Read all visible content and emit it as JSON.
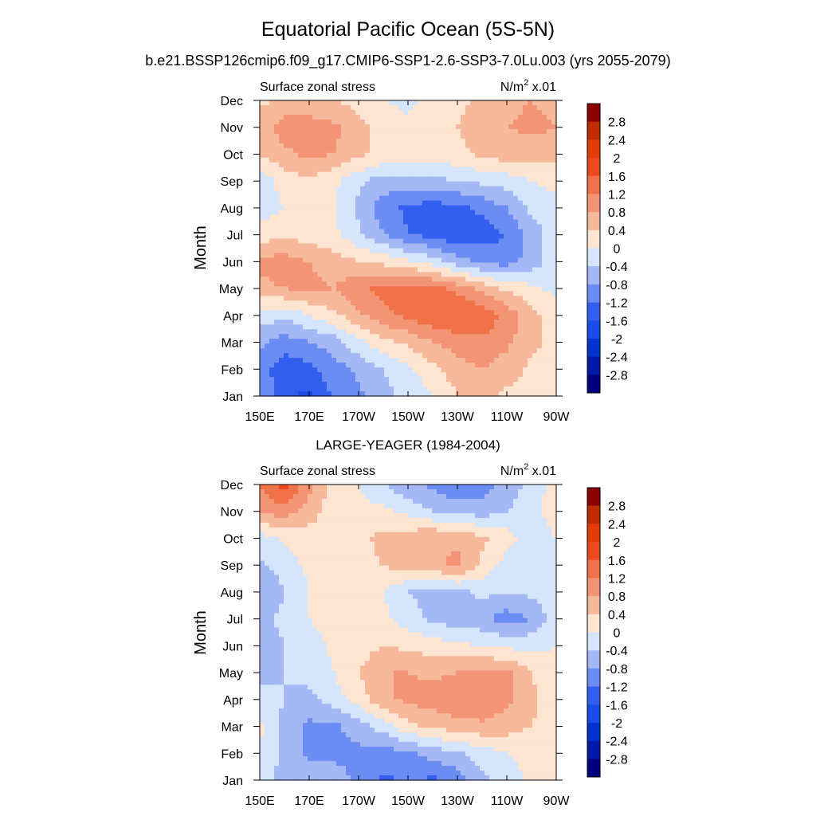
{
  "figure": {
    "title": "Equatorial Pacific Ocean (5S-5N)",
    "subtitle": "b.e21.BSSP126cmip6.f09_g17.CMIP6-SSP1-2.6-SSP3-7.0Lu.003 (yrs 2055-2079)",
    "panel2_title": "LARGE-YEAGER (1984-2004)"
  },
  "colors": {
    "palette": [
      "#00007f",
      "#0019a6",
      "#0033cc",
      "#1a4de6",
      "#335ff0",
      "#6b8cf2",
      "#a3b8f5",
      "#d5e5fb",
      "#fde5d2",
      "#f7b99b",
      "#f39575",
      "#f07048",
      "#eb4a1f",
      "#e43c08",
      "#bf2c00",
      "#8c0000"
    ]
  },
  "chart_data": [
    {
      "type": "heatmap",
      "left_label": "Surface zonal stress",
      "right_label": "N/m",
      "right_label_sup": "2",
      "right_label_tail": " x.01",
      "ylabel": "Month",
      "x_ticks": [
        "150E",
        "170E",
        "170W",
        "150W",
        "130W",
        "110W",
        "90W"
      ],
      "y_ticks": [
        "Jan",
        "Feb",
        "Mar",
        "Apr",
        "May",
        "Jun",
        "Jul",
        "Aug",
        "Sep",
        "Oct",
        "Nov",
        "Dec"
      ],
      "xlim": [
        150,
        270
      ],
      "ylim": [
        1,
        12
      ],
      "levels": [
        -2.8,
        -2.4,
        -2,
        -1.6,
        -1.2,
        -0.8,
        -0.4,
        0,
        0.4,
        0.8,
        1.2,
        1.6,
        2,
        2.4,
        2.8
      ],
      "colorbar_labels": [
        "2.8",
        "2.4",
        "2",
        "1.6",
        "1.2",
        "0.8",
        "0.4",
        "0",
        "-0.4",
        "-0.8",
        "-1.2",
        "-1.6",
        "-2",
        "-2.4",
        "-2.8"
      ],
      "x": [
        150,
        160,
        170,
        180,
        190,
        200,
        210,
        220,
        230,
        240,
        250,
        260,
        270
      ],
      "y": [
        1,
        2,
        3,
        4,
        5,
        6,
        7,
        8,
        9,
        10,
        11,
        12
      ],
      "z": [
        [
          -0.7,
          -1.5,
          -1.7,
          -1.1,
          -0.9,
          -0.5,
          -0.3,
          0.0,
          0.4,
          0.5,
          0.3,
          0.3,
          0.2
        ],
        [
          -1.0,
          -1.5,
          -1.3,
          -1.0,
          -0.7,
          -0.4,
          -0.1,
          0.3,
          0.6,
          0.8,
          0.6,
          0.3,
          0.2
        ],
        [
          -0.7,
          -1.0,
          -0.8,
          -0.6,
          -0.1,
          0.3,
          0.5,
          0.8,
          1.0,
          1.1,
          0.9,
          0.5,
          0.3
        ],
        [
          -0.2,
          -0.3,
          0.0,
          0.3,
          0.7,
          1.1,
          1.3,
          1.5,
          1.6,
          1.5,
          1.1,
          0.5,
          0.3
        ],
        [
          0.7,
          0.8,
          0.9,
          0.8,
          1.1,
          1.3,
          1.4,
          1.3,
          1.1,
          0.7,
          0.3,
          0.1,
          -0.1
        ],
        [
          0.9,
          1.0,
          0.8,
          0.6,
          0.4,
          0.3,
          0.1,
          -0.2,
          -0.6,
          -0.9,
          -1.0,
          -0.6,
          -0.2
        ],
        [
          0.2,
          0.3,
          0.2,
          0.1,
          -0.3,
          -0.8,
          -1.2,
          -1.3,
          -1.6,
          -1.4,
          -1.2,
          -0.6,
          -0.2
        ],
        [
          -0.2,
          0.0,
          0.1,
          0.0,
          -0.5,
          -1.0,
          -1.3,
          -1.4,
          -1.3,
          -1.1,
          -0.8,
          -0.3,
          -0.1
        ],
        [
          -0.3,
          0.2,
          0.3,
          0.1,
          -0.3,
          -0.6,
          -0.5,
          -0.5,
          -0.4,
          -0.3,
          -0.2,
          0.0,
          0.1
        ],
        [
          0.4,
          0.7,
          0.9,
          0.8,
          0.5,
          0.3,
          0.2,
          0.2,
          0.3,
          0.5,
          0.6,
          0.6,
          0.5
        ],
        [
          0.6,
          1.0,
          1.0,
          0.9,
          0.6,
          0.2,
          0.1,
          0.2,
          0.4,
          0.6,
          0.8,
          0.9,
          0.8
        ],
        [
          0.3,
          0.5,
          0.5,
          0.4,
          0.2,
          0.0,
          -0.1,
          0.1,
          0.3,
          0.5,
          0.7,
          0.8,
          0.7
        ]
      ]
    },
    {
      "type": "heatmap",
      "left_label": "Surface zonal stress",
      "right_label": "N/m",
      "right_label_sup": "2",
      "right_label_tail": " x.01",
      "ylabel": "Month",
      "x_ticks": [
        "150E",
        "170E",
        "170W",
        "150W",
        "130W",
        "110W",
        "90W"
      ],
      "y_ticks": [
        "Jan",
        "Feb",
        "Mar",
        "Apr",
        "May",
        "Jun",
        "Jul",
        "Aug",
        "Sep",
        "Oct",
        "Nov",
        "Dec"
      ],
      "xlim": [
        150,
        270
      ],
      "ylim": [
        1,
        12
      ],
      "levels": [
        -2.8,
        -2.4,
        -2,
        -1.6,
        -1.2,
        -0.8,
        -0.4,
        0,
        0.4,
        0.8,
        1.2,
        1.6,
        2,
        2.4,
        2.8
      ],
      "colorbar_labels": [
        "2.8",
        "2.4",
        "2",
        "1.6",
        "1.2",
        "0.8",
        "0.4",
        "0",
        "-0.4",
        "-0.8",
        "-1.2",
        "-1.6",
        "-2",
        "-2.4",
        "-2.8"
      ],
      "x": [
        150,
        160,
        170,
        180,
        190,
        200,
        210,
        220,
        230,
        240,
        250,
        260,
        270
      ],
      "y": [
        1,
        2,
        3,
        4,
        5,
        6,
        7,
        8,
        9,
        10,
        11,
        12
      ],
      "z": [
        [
          -0.2,
          -0.6,
          -0.5,
          -0.6,
          -0.9,
          -1.3,
          -1.1,
          -1.3,
          -1.0,
          -0.5,
          -0.2,
          0.1,
          0.1
        ],
        [
          0.0,
          -0.5,
          -0.9,
          -0.9,
          -0.9,
          -1.0,
          -0.9,
          -0.6,
          -0.5,
          -0.2,
          0.0,
          0.1,
          0.1
        ],
        [
          0.1,
          -0.5,
          -0.9,
          -0.9,
          -0.6,
          -0.2,
          0.3,
          0.5,
          0.6,
          0.7,
          0.6,
          0.4,
          0.2
        ],
        [
          -0.3,
          -0.4,
          -0.5,
          -0.2,
          0.2,
          0.7,
          0.9,
          1.0,
          1.2,
          1.2,
          0.9,
          0.5,
          0.1
        ],
        [
          -0.5,
          -0.4,
          -0.3,
          0.0,
          0.4,
          0.8,
          0.8,
          0.7,
          0.8,
          0.9,
          0.9,
          0.4,
          0.1
        ],
        [
          -0.6,
          -0.4,
          -0.2,
          0.1,
          0.2,
          0.4,
          0.3,
          0.2,
          0.1,
          0.0,
          -0.1,
          -0.1,
          0.0
        ],
        [
          -0.5,
          -0.3,
          0.0,
          0.2,
          0.2,
          0.1,
          -0.2,
          -0.5,
          -0.6,
          -0.7,
          -1.0,
          -0.8,
          -0.2
        ],
        [
          -0.8,
          -0.4,
          0.0,
          0.2,
          0.3,
          0.0,
          -0.4,
          -0.6,
          -0.5,
          -0.3,
          -0.4,
          -0.3,
          0.0
        ],
        [
          -0.5,
          -0.2,
          0.1,
          0.2,
          0.3,
          0.4,
          0.6,
          0.7,
          0.9,
          0.3,
          -0.2,
          -0.4,
          0.0
        ],
        [
          -0.2,
          0.1,
          0.2,
          0.2,
          0.3,
          0.5,
          0.6,
          0.8,
          0.7,
          0.5,
          0.2,
          -0.3,
          0.0
        ],
        [
          0.9,
          1.0,
          0.6,
          0.2,
          0.1,
          0.1,
          -0.1,
          -0.4,
          -0.5,
          -0.6,
          -0.4,
          -0.2,
          0.3
        ],
        [
          1.2,
          1.8,
          0.9,
          0.2,
          0.0,
          -0.4,
          -0.7,
          -0.9,
          -1.2,
          -1.0,
          -0.6,
          -0.3,
          0.2
        ]
      ]
    }
  ]
}
